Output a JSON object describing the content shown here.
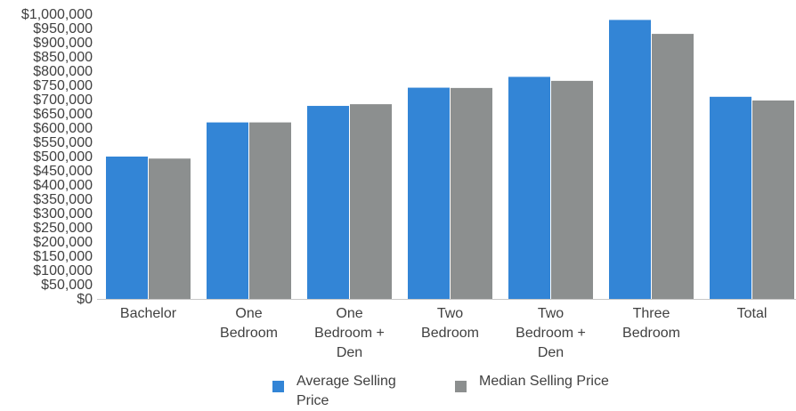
{
  "chart_data": {
    "type": "bar",
    "categories": [
      [
        "Bachelor"
      ],
      [
        "One",
        "Bedroom"
      ],
      [
        "One",
        "Bedroom +",
        "Den"
      ],
      [
        "Two",
        "Bedroom"
      ],
      [
        "Two",
        "Bedroom +",
        "Den"
      ],
      [
        "Three",
        "Bedroom"
      ],
      [
        "Total"
      ]
    ],
    "series": [
      {
        "name": "Average Selling Price",
        "color": "#3385d6",
        "values": [
          500000,
          620000,
          678000,
          742000,
          780000,
          980000,
          710000
        ]
      },
      {
        "name": "Median Selling Price",
        "color": "#8c8f8f",
        "values": [
          493000,
          620000,
          684000,
          741000,
          766000,
          931000,
          697000
        ]
      }
    ],
    "ylim": [
      0,
      1000000
    ],
    "yticks": [
      "$0",
      "$50,000",
      "$100,000",
      "$150,000",
      "$200,000",
      "$250,000",
      "$300,000",
      "$350,000",
      "$400,000",
      "$450,000",
      "$500,000",
      "$550,000",
      "$600,000",
      "$650,000",
      "$700,000",
      "$750,000",
      "$800,000",
      "$850,000",
      "$900,000",
      "$950,000",
      "$1,000,000"
    ],
    "ytick_step": 50000,
    "grid": false,
    "legend_position": "bottom"
  },
  "legend": {
    "items": [
      {
        "label": "Average Selling Price",
        "color": "#3385d6"
      },
      {
        "label": "Median Selling Price",
        "color": "#8c8f8f"
      }
    ]
  }
}
